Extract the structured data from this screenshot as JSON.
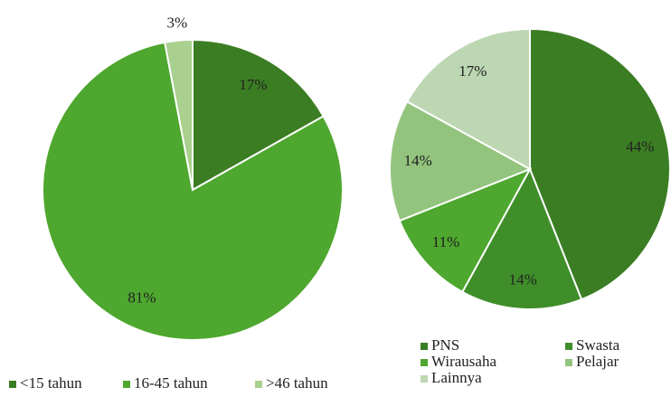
{
  "chart_data": [
    {
      "type": "pie",
      "categories": [
        "<15 tahun",
        "16-45 tahun",
        ">46 tahun"
      ],
      "values": [
        17,
        81,
        3
      ],
      "value_labels": [
        "17%",
        "81%",
        "3%"
      ],
      "colors": [
        "#3b7d23",
        "#4ea72e",
        "#a9d08e"
      ]
    },
    {
      "type": "pie",
      "categories": [
        "PNS",
        "Swasta",
        "Wirausaha",
        "Pelajar",
        "Lainnya"
      ],
      "values": [
        44,
        14,
        11,
        14,
        17
      ],
      "value_labels": [
        "44%",
        "14%",
        "11%",
        "14%",
        "17%"
      ],
      "colors": [
        "#3b7d23",
        "#3f8e2a",
        "#4ea72e",
        "#93c47d",
        "#bdd7b3"
      ]
    }
  ]
}
